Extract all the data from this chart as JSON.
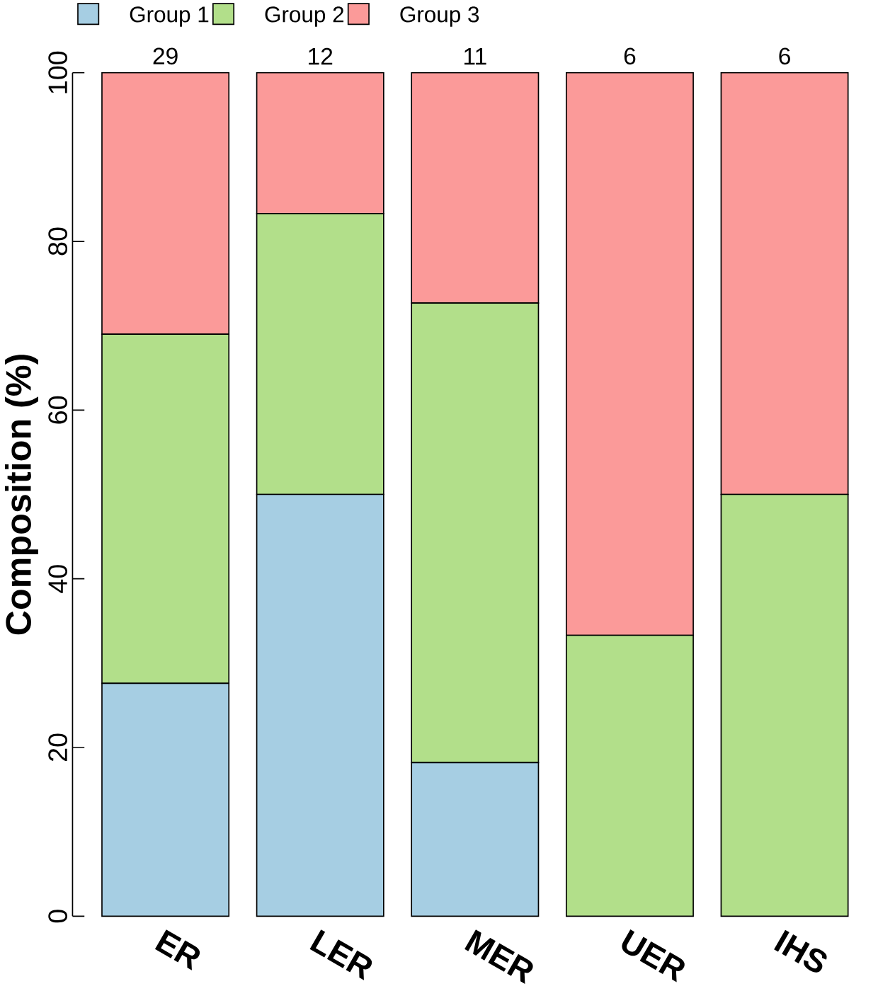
{
  "chart_data": {
    "type": "bar",
    "stacked": true,
    "ylabel": "Composition (%)",
    "categories": [
      "ER",
      "LER",
      "MER",
      "UER",
      "IHS"
    ],
    "series": [
      {
        "name": "Group 1",
        "color": "#a6cee3",
        "values": [
          27.6,
          50,
          18.2,
          0,
          0
        ]
      },
      {
        "name": "Group 2",
        "color": "#b2df8a",
        "values": [
          41.4,
          33.3,
          54.5,
          33.3,
          50
        ]
      },
      {
        "name": "Group 3",
        "color": "#fb9a99",
        "values": [
          31.0,
          16.7,
          27.3,
          66.7,
          50
        ]
      }
    ],
    "annotations": [
      {
        "text": "29",
        "x": "ER",
        "y": 100
      },
      {
        "text": "12",
        "x": "LER",
        "y": 100
      },
      {
        "text": "11",
        "x": "MER",
        "y": 100
      },
      {
        "text": "6",
        "x": "UER",
        "y": 100
      },
      {
        "text": "6",
        "x": "IHS",
        "y": 100
      }
    ],
    "ylim": [
      0,
      100
    ],
    "yticks": [
      0,
      20,
      40,
      60,
      80,
      100
    ],
    "legend": "top left",
    "grid": false
  }
}
